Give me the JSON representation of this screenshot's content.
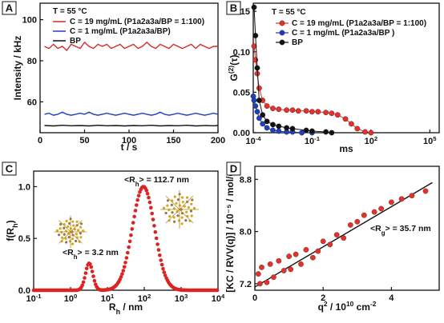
{
  "chart_data": [
    {
      "panel": "A",
      "type": "line",
      "temperature_label": "T = 55 °C",
      "xlabel": "t / s",
      "ylabel": "Intensity / kHz",
      "xlim": [
        0,
        200
      ],
      "ylim": [
        45,
        108
      ],
      "xticks": [
        0,
        50,
        100,
        150,
        200
      ],
      "yticks": [
        60,
        80,
        100
      ],
      "legend": "top-left",
      "series": [
        {
          "name": "C = 19 mg/mL (P1a2a3a/BP = 1:100)",
          "color": "#d62728",
          "x": [
            5,
            10,
            15,
            20,
            25,
            30,
            35,
            40,
            45,
            50,
            55,
            60,
            65,
            70,
            75,
            80,
            85,
            90,
            95,
            100,
            105,
            110,
            115,
            120,
            125,
            130,
            135,
            140,
            145,
            150,
            155,
            160,
            165,
            170,
            175,
            180,
            185,
            190,
            195,
            200
          ],
          "y": [
            87,
            86,
            88,
            86,
            87,
            85,
            88,
            87,
            86,
            89,
            87,
            86,
            88,
            87,
            88,
            86,
            87,
            88,
            86,
            87,
            88,
            86,
            87,
            89,
            87,
            86,
            88,
            87,
            86,
            88,
            87,
            86,
            87,
            88,
            86,
            88,
            87,
            86,
            87,
            87
          ]
        },
        {
          "name": "C = 1 mg/mL (P1a2a3a/BP)",
          "color": "#1f3fbf",
          "x": [
            5,
            10,
            15,
            20,
            25,
            30,
            35,
            40,
            45,
            50,
            55,
            60,
            65,
            70,
            75,
            80,
            85,
            90,
            95,
            100,
            105,
            110,
            115,
            120,
            125,
            130,
            135,
            140,
            145,
            150,
            155,
            160,
            165,
            170,
            175,
            180,
            185,
            190,
            195,
            200
          ],
          "y": [
            54,
            54.5,
            53.5,
            54,
            55,
            54,
            53.5,
            54,
            54.5,
            54,
            55,
            54,
            53.5,
            54,
            54.5,
            54,
            53.5,
            54,
            54.5,
            54,
            53.5,
            54,
            54.5,
            54,
            53.5,
            54,
            55,
            54,
            53.5,
            54,
            54.5,
            54,
            53.5,
            54,
            54.5,
            54,
            53.5,
            54,
            54.5,
            54
          ]
        },
        {
          "name": "BP",
          "color": "#111111",
          "x": [
            5,
            15,
            25,
            35,
            45,
            55,
            65,
            75,
            85,
            95,
            105,
            115,
            125,
            135,
            145,
            155,
            165,
            175,
            185,
            195,
            200
          ],
          "y": [
            48.5,
            48.3,
            48.6,
            48.4,
            48.5,
            48.3,
            48.6,
            48.4,
            48.5,
            48.3,
            48.5,
            48.4,
            48.6,
            48.3,
            48.5,
            48.4,
            48.6,
            48.3,
            48.5,
            48.4,
            48.5
          ]
        }
      ]
    },
    {
      "panel": "B",
      "type": "scatter",
      "temperature_label": "T = 55 °C",
      "xlabel": "ms",
      "ylabel_prefix": "G",
      "ylabel_sup": "(2)",
      "ylabel_suffix": "(τ)",
      "xscale": "log",
      "xlim": [
        0.0001,
        300000
      ],
      "ylim": [
        0,
        0.16
      ],
      "xticks": [
        {
          "v": 0.0001,
          "b": "10",
          "e": "-4"
        },
        {
          "v": 0.1,
          "b": "10",
          "e": "-1"
        },
        {
          "v": 100,
          "b": "10",
          "e": "2"
        },
        {
          "v": 100000,
          "b": "10",
          "e": "5"
        }
      ],
      "yticks": [
        {
          "v": 0,
          "t": "0.00"
        },
        {
          "v": 0.05,
          "t": "0.05"
        },
        {
          "v": 0.1,
          "t": "0.10"
        },
        {
          "v": 0.15,
          "t": "0.15"
        }
      ],
      "legend": "top-right",
      "series": [
        {
          "name": "C = 19 mg/mL (P1a2a3a/BP = 1:100)",
          "color": "#e8302a",
          "x": [
            0.00011,
            0.00013,
            0.00016,
            0.0002,
            0.0003,
            0.0005,
            0.001,
            0.002,
            0.005,
            0.01,
            0.02,
            0.05,
            0.1,
            0.2,
            0.5,
            1,
            2,
            5,
            10,
            20,
            50,
            100
          ],
          "y": [
            0.107,
            0.09,
            0.073,
            0.055,
            0.04,
            0.033,
            0.03,
            0.029,
            0.028,
            0.028,
            0.027,
            0.027,
            0.026,
            0.026,
            0.025,
            0.024,
            0.022,
            0.017,
            0.011,
            0.005,
            0.001,
            0.0
          ]
        },
        {
          "name": "C = 1 mg/mL (P1a2a3a/BP )",
          "color": "#1f3fbf",
          "x": [
            0.0001,
            0.00011,
            0.00013,
            0.00016,
            0.0002,
            0.0003,
            0.0005,
            0.001,
            0.002,
            0.005,
            0.01,
            0.03,
            0.1
          ],
          "y": [
            0.045,
            0.04,
            0.033,
            0.026,
            0.018,
            0.011,
            0.006,
            0.003,
            0.002,
            0.001,
            0.001,
            0.0,
            0.0
          ]
        },
        {
          "name": "BP",
          "color": "#111111",
          "x": [
            0.00011,
            0.00013,
            0.00016,
            0.0002,
            0.0003,
            0.0005,
            0.001,
            0.002,
            0.005,
            0.01,
            0.05,
            0.1,
            0.5,
            1
          ],
          "y": [
            0.155,
            0.12,
            0.08,
            0.04,
            0.022,
            0.014,
            0.01,
            0.008,
            0.006,
            0.005,
            0.003,
            0.002,
            0.001,
            0.0
          ]
        }
      ]
    },
    {
      "panel": "C",
      "type": "line",
      "xlabel_main": "R",
      "xlabel_sub": "h",
      "xlabel_suffix": " / nm",
      "ylabel_main": "f(R",
      "ylabel_sub": "h",
      "ylabel_suffix": ")",
      "xscale": "log",
      "xlim": [
        0.1,
        10000
      ],
      "ylim": [
        0,
        1.15
      ],
      "xticks": [
        {
          "v": 0.1,
          "b": "10",
          "e": "-1"
        },
        {
          "v": 1,
          "b": "10",
          "e": "0"
        },
        {
          "v": 10,
          "b": "10",
          "e": "1"
        },
        {
          "v": 100,
          "b": "10",
          "e": "2"
        },
        {
          "v": 1000,
          "b": "10",
          "e": "3"
        },
        {
          "v": 10000,
          "b": "10",
          "e": "4"
        }
      ],
      "yticks": [
        {
          "v": 0,
          "t": "0.0"
        },
        {
          "v": 0.5,
          "t": "0.5"
        },
        {
          "v": 1.0,
          "t": "1.0"
        }
      ],
      "peaks": [
        {
          "center": 3.2,
          "height": 0.26,
          "log_width": 0.1,
          "label_pre": "<R",
          "label_sub": "h",
          "label_post": "> = 3.2 nm"
        },
        {
          "center": 95,
          "height": 1.0,
          "log_width": 0.3,
          "label_pre": "<R",
          "label_sub": "h",
          "label_post": "> = 112.7 nm"
        }
      ],
      "color": "#dd2222"
    },
    {
      "panel": "D",
      "type": "scatter",
      "xlabel_main": "q",
      "xlabel_sup": "2",
      "xlabel_rest": " / 10",
      "xlabel_sup2": "10",
      "xlabel_rest2": " cm",
      "xlabel_sup3": "-2",
      "ylabel": "[KC / RVV(q)] / 10⁻⁵ / mol/g",
      "xlim": [
        0,
        5.4
      ],
      "ylim": [
        7.1,
        9.0
      ],
      "xticks": [
        {
          "v": 0,
          "t": "0"
        },
        {
          "v": 2,
          "t": "2"
        },
        {
          "v": 4,
          "t": "4"
        }
      ],
      "yticks": [
        {
          "v": 7.2,
          "t": "7.2"
        },
        {
          "v": 8.0,
          "t": "8.0"
        },
        {
          "v": 8.8,
          "t": "8.8"
        }
      ],
      "annotation_pre": "<R",
      "annotation_sub": "g",
      "annotation_post": "> = 35.7 nm",
      "series": [
        {
          "name": "data",
          "color": "#e8302a",
          "x": [
            0.1,
            0.15,
            0.2,
            0.35,
            0.45,
            0.55,
            0.7,
            0.85,
            1.0,
            1.05,
            1.2,
            1.35,
            1.5,
            1.7,
            1.85,
            2.0,
            2.2,
            2.4,
            2.6,
            2.8,
            3.0,
            3.2,
            3.5,
            3.7,
            4.0,
            4.3,
            4.6,
            5.0
          ],
          "y": [
            7.35,
            7.2,
            7.45,
            7.22,
            7.5,
            7.3,
            7.55,
            7.4,
            7.62,
            7.42,
            7.65,
            7.5,
            7.72,
            7.6,
            7.7,
            7.85,
            7.8,
            7.95,
            7.9,
            8.1,
            8.15,
            8.25,
            8.3,
            8.35,
            8.45,
            8.5,
            8.55,
            8.62
          ]
        }
      ],
      "fit": {
        "x": [
          0,
          5.2
        ],
        "y": [
          7.15,
          8.75
        ],
        "color": "#111111"
      }
    }
  ]
}
